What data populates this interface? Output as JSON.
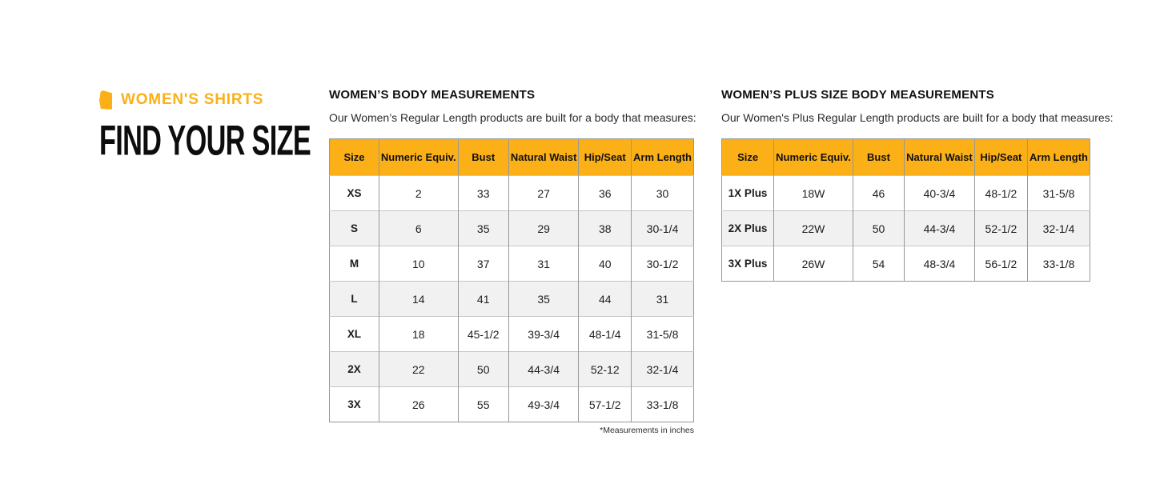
{
  "brand": {
    "eyebrow": "WOMEN'S SHIRTS",
    "title": "FIND YOUR SIZE"
  },
  "colors": {
    "accent_amber": "#fcb017",
    "table_header_bg": "#fbb017",
    "row_alt_bg": "#f1f1f1",
    "border_vertical": "#989898",
    "border_horizontal": "#c6c6c6",
    "title_text": "#0d0d0d"
  },
  "tables": [
    {
      "heading": "WOMEN’S BODY MEASUREMENTS",
      "subheading": "Our Women’s Regular Length products are built for a body that measures:",
      "columns": [
        "Size",
        "Numeric Equiv.",
        "Bust",
        "Natural Waist",
        "Hip/Seat",
        "Arm Length"
      ],
      "rows": [
        [
          "XS",
          "2",
          "33",
          "27",
          "36",
          "30"
        ],
        [
          "S",
          "6",
          "35",
          "29",
          "38",
          "30-1/4"
        ],
        [
          "M",
          "10",
          "37",
          "31",
          "40",
          "30-1/2"
        ],
        [
          "L",
          "14",
          "41",
          "35",
          "44",
          "31"
        ],
        [
          "XL",
          "18",
          "45-1/2",
          "39-3/4",
          "48-1/4",
          "31-5/8"
        ],
        [
          "2X",
          "22",
          "50",
          "44-3/4",
          "52-12",
          "32-1/4"
        ],
        [
          "3X",
          "26",
          "55",
          "49-3/4",
          "57-1/2",
          "33-1/8"
        ]
      ],
      "footnote": "*Measurements in inches"
    },
    {
      "heading": "WOMEN’S PLUS SIZE BODY MEASUREMENTS",
      "subheading": "Our Women's Plus Regular Length products are built for a body that measures:",
      "columns": [
        "Size",
        "Numeric Equiv.",
        "Bust",
        "Natural Waist",
        "Hip/Seat",
        "Arm Length"
      ],
      "rows": [
        [
          "1X Plus",
          "18W",
          "46",
          "40-3/4",
          "48-1/2",
          "31-5/8"
        ],
        [
          "2X Plus",
          "22W",
          "50",
          "44-3/4",
          "52-1/2",
          "32-1/4"
        ],
        [
          "3X Plus",
          "26W",
          "54",
          "48-3/4",
          "56-1/2",
          "33-1/8"
        ]
      ],
      "footnote": ""
    }
  ]
}
